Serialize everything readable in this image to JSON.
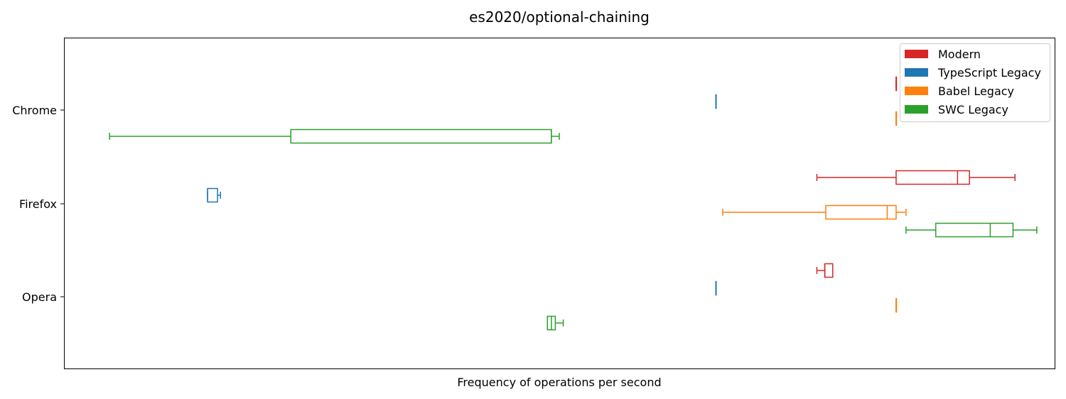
{
  "chart_data": {
    "type": "boxplot",
    "orientation": "horizontal",
    "title": "es2020/optional-chaining",
    "xlabel": "Frequency of operations per second",
    "ylabel": "",
    "x_ticks_shown": false,
    "xlim": [
      -0.4,
      9.6
    ],
    "grid": false,
    "legend_position": "top-right",
    "categories": [
      "Chrome",
      "Firefox",
      "Opera"
    ],
    "series": [
      {
        "name": "Modern",
        "color": "#d62728",
        "boxes": [
          {
            "min": 8.0,
            "q1": 8.0,
            "median": 8.0,
            "q3": 8.0,
            "max": 8.0
          },
          {
            "min": 7.2,
            "q1": 8.0,
            "median": 8.62,
            "q3": 8.74,
            "max": 9.2
          },
          {
            "min": 7.2,
            "q1": 7.28,
            "median": 7.28,
            "q3": 7.36,
            "max": 7.36
          }
        ]
      },
      {
        "name": "TypeScript Legacy",
        "color": "#1f77b4",
        "boxes": [
          {
            "min": 6.18,
            "q1": 6.18,
            "median": 6.18,
            "q3": 6.18,
            "max": 6.18
          },
          {
            "min": 1.05,
            "q1": 1.05,
            "median": 1.05,
            "q3": 1.15,
            "max": 1.18
          },
          {
            "min": 6.18,
            "q1": 6.18,
            "median": 6.18,
            "q3": 6.18,
            "max": 6.18
          }
        ]
      },
      {
        "name": "Babel Legacy",
        "color": "#ff7f0e",
        "boxes": [
          {
            "min": 8.0,
            "q1": 8.0,
            "median": 8.0,
            "q3": 8.0,
            "max": 8.0
          },
          {
            "min": 6.25,
            "q1": 7.29,
            "median": 7.91,
            "q3": 8.0,
            "max": 8.1
          },
          {
            "min": 8.0,
            "q1": 8.0,
            "median": 8.0,
            "q3": 8.0,
            "max": 8.0
          }
        ]
      },
      {
        "name": "SWC Legacy",
        "color": "#2ca02c",
        "boxes": [
          {
            "min": 0.06,
            "q1": 1.89,
            "median": 4.52,
            "q3": 4.52,
            "max": 4.6
          },
          {
            "min": 8.1,
            "q1": 8.4,
            "median": 8.95,
            "q3": 9.18,
            "max": 9.42
          },
          {
            "min": 4.48,
            "q1": 4.48,
            "median": 4.52,
            "q3": 4.56,
            "max": 4.64
          }
        ]
      }
    ]
  }
}
